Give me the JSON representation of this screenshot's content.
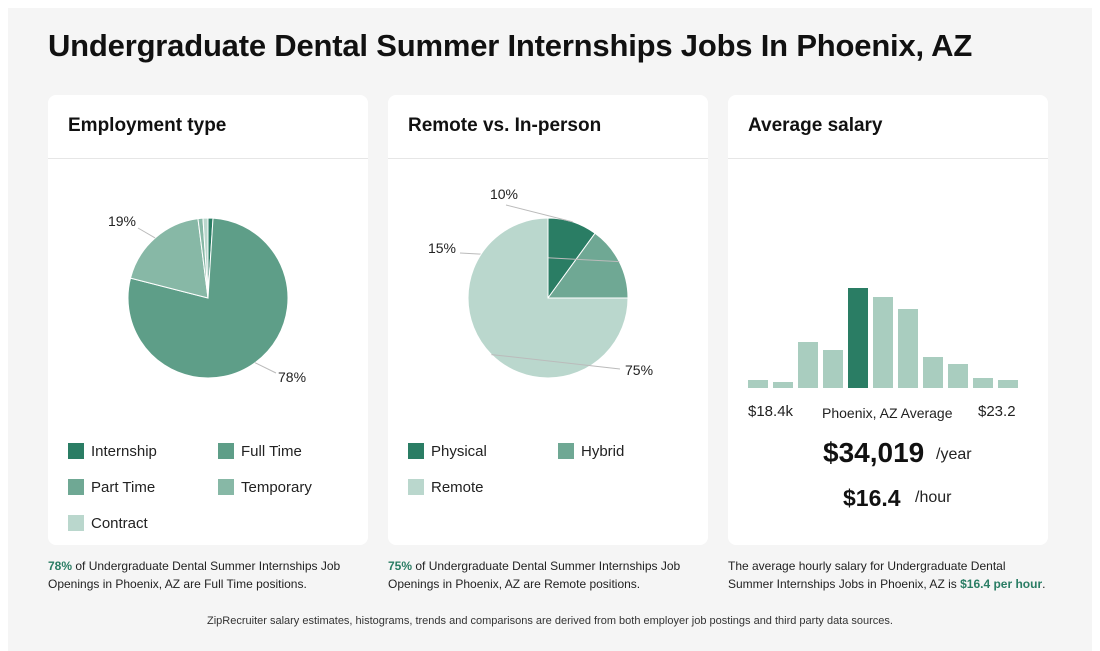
{
  "page": {
    "title": "Undergraduate Dental Summer Internships Jobs In Phoenix, AZ"
  },
  "colors": {
    "dark_green": "#2a7d64",
    "mid_green": "#5e9e88",
    "light_mid_green": "#6fa894",
    "pale_green": "#87b8a6",
    "very_pale_green": "#bad7cd"
  },
  "chart_data": [
    {
      "type": "pie",
      "title": "Employment type",
      "slices": [
        {
          "name": "Internship",
          "value": 1,
          "color": "#2a7d64"
        },
        {
          "name": "Full Time",
          "value": 78,
          "color": "#5e9e88",
          "label": "78%"
        },
        {
          "name": "Part Time",
          "value": 19,
          "color": "#87b8a6",
          "label": "19%"
        },
        {
          "name": "Temporary",
          "value": 1,
          "color": "#87b8a6"
        },
        {
          "name": "Contract",
          "value": 1,
          "color": "#bad7cd"
        }
      ],
      "legend": [
        {
          "name": "Internship",
          "color": "#2a7d64"
        },
        {
          "name": "Full Time",
          "color": "#5e9e88"
        },
        {
          "name": "Part Time",
          "color": "#6fa894"
        },
        {
          "name": "Temporary",
          "color": "#87b8a6"
        },
        {
          "name": "Contract",
          "color": "#bad7cd"
        }
      ]
    },
    {
      "type": "pie",
      "title": "Remote vs. In-person",
      "slices": [
        {
          "name": "Physical",
          "value": 10,
          "color": "#2a7d64",
          "label": "10%"
        },
        {
          "name": "Hybrid",
          "value": 15,
          "color": "#6fa894",
          "label": "15%"
        },
        {
          "name": "Remote",
          "value": 75,
          "color": "#bad7cd",
          "label": "75%"
        }
      ],
      "legend": [
        {
          "name": "Physical",
          "color": "#2a7d64"
        },
        {
          "name": "Hybrid",
          "color": "#6fa894"
        },
        {
          "name": "Remote",
          "color": "#bad7cd"
        }
      ]
    },
    {
      "type": "bar",
      "title": "Average salary",
      "values": [
        8,
        6,
        46,
        38,
        100,
        91,
        79,
        31,
        24,
        10,
        8
      ],
      "highlight_index": 4,
      "highlight_color": "#2a7d64",
      "bar_color": "#a9cdbf",
      "range_min_label": "$18.4k",
      "range_max_label": "$23.2",
      "average_label": "Phoenix, AZ Average",
      "annual_salary": "$34,019",
      "annual_unit": "/year",
      "hourly_salary": "$16.4",
      "hourly_unit": "/hour"
    }
  ],
  "captions": {
    "employment": {
      "highlight": "78%",
      "text": " of Undergraduate Dental Summer Internships Job Openings in Phoenix, AZ are Full Time positions."
    },
    "remote": {
      "highlight": "75%",
      "text": " of Undergraduate Dental Summer Internships Job Openings in Phoenix, AZ are Remote positions."
    },
    "salary": {
      "text": "The average hourly salary for Undergraduate Dental Summer Internships Jobs in Phoenix, AZ is ",
      "highlight": "$16.4 per hour",
      "end": "."
    }
  },
  "footer": "ZipRecruiter salary estimates, histograms, trends and comparisons are derived from both employer job postings and third party data sources."
}
